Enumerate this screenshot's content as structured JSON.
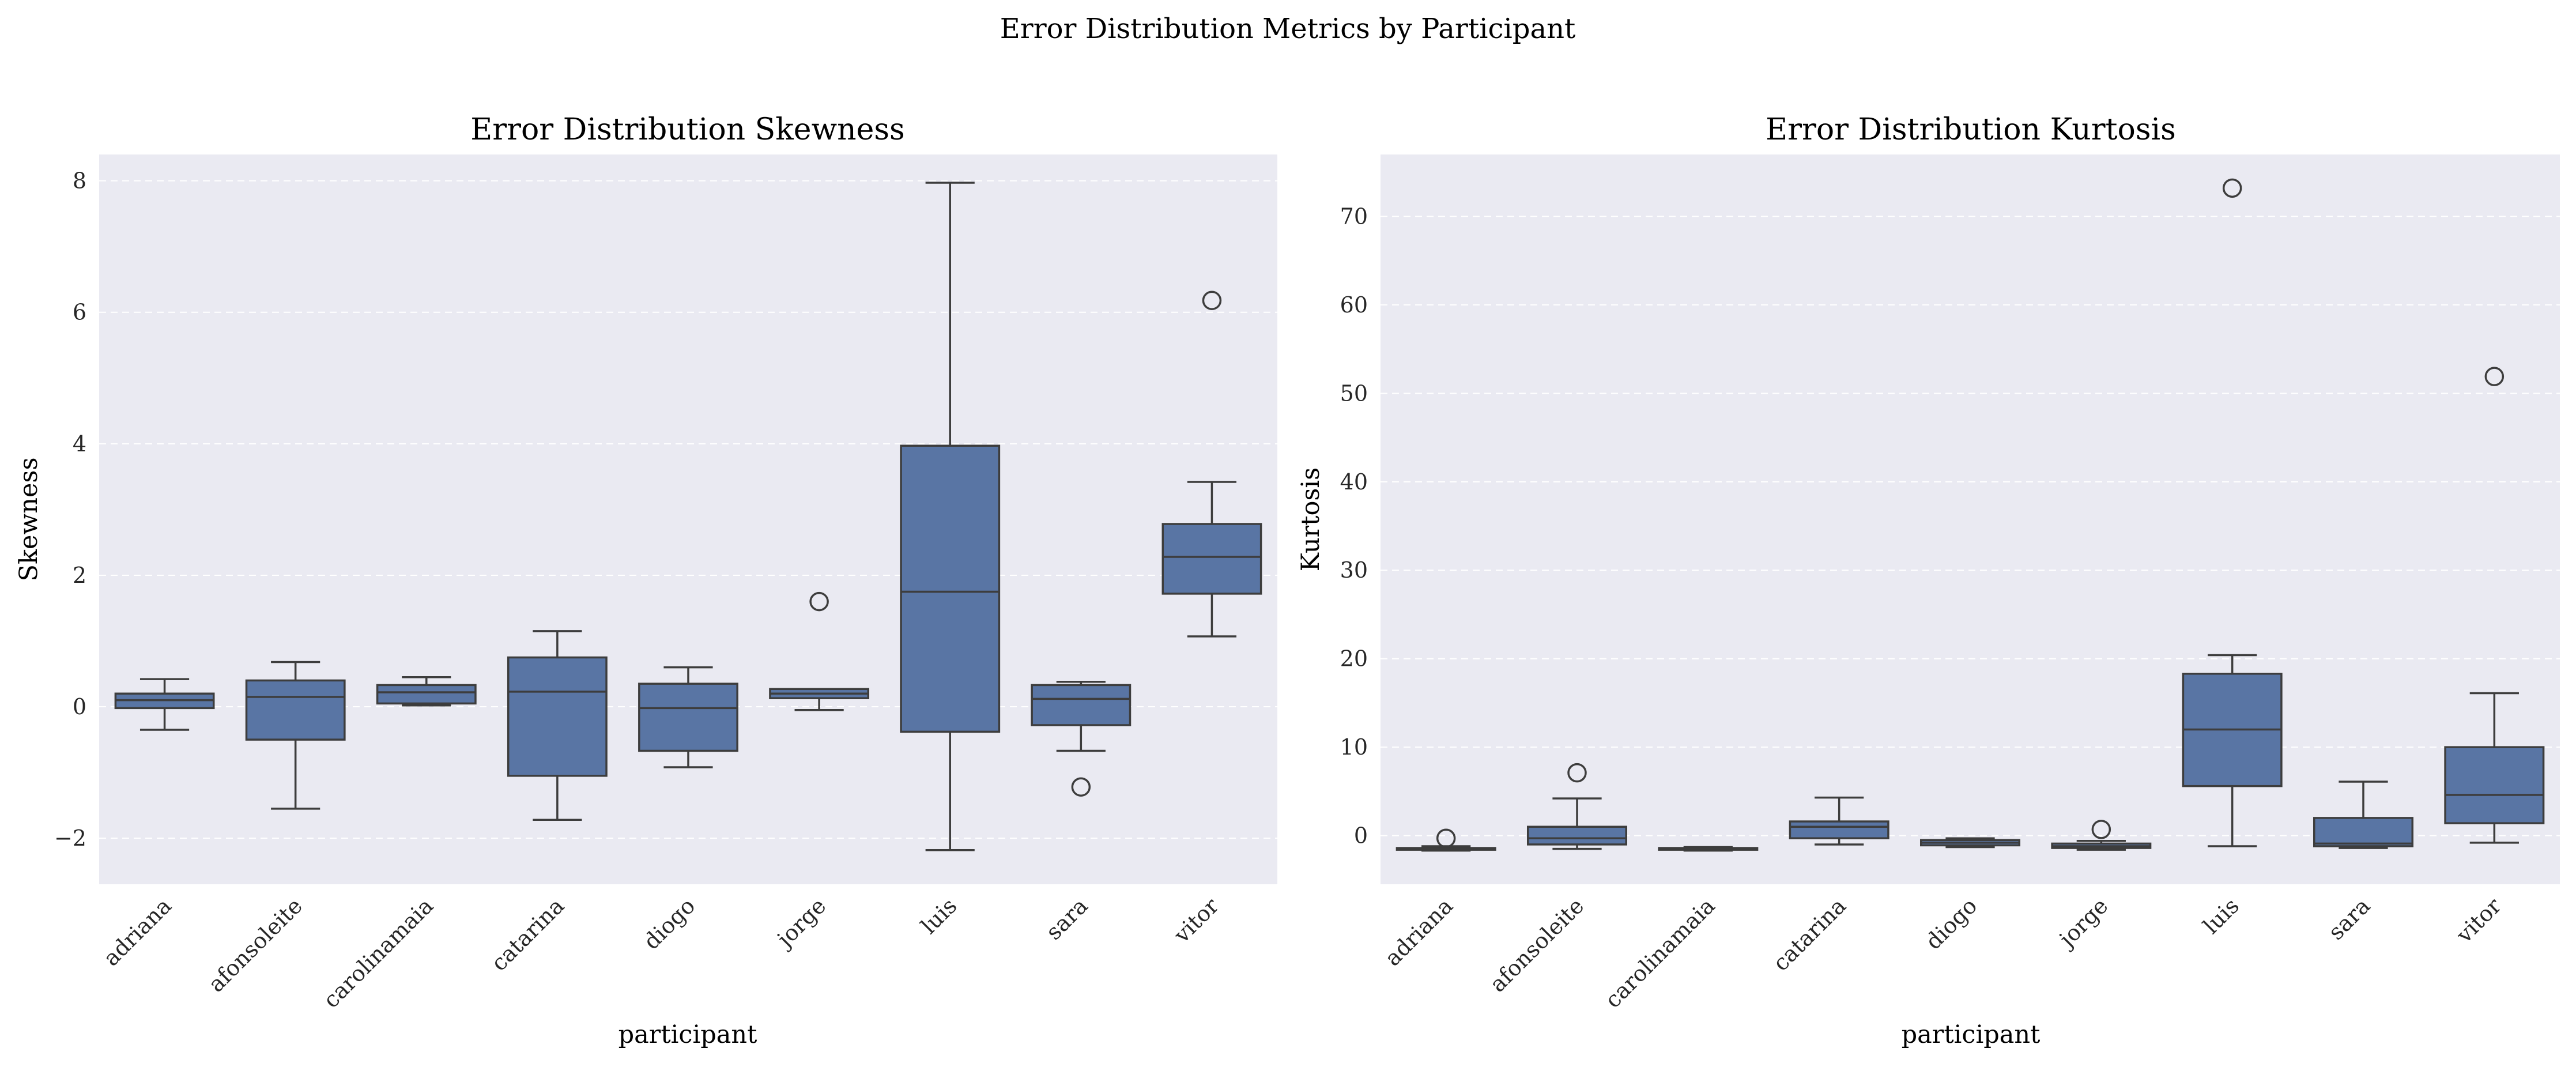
{
  "figure": {
    "suptitle": "Error Distribution Metrics by Participant"
  },
  "colors": {
    "background": "#eaeaf2",
    "box": "#5975a4",
    "line": "#3d3d3d",
    "grid": "#ffffff"
  },
  "chart_data": [
    {
      "type": "box",
      "title": "Error Distribution Skewness",
      "xlabel": "participant",
      "ylabel": "Skewness",
      "ylim": [
        -2.7,
        8.4
      ],
      "yticks": [
        -2,
        0,
        2,
        4,
        6,
        8
      ],
      "grid": true,
      "categories": [
        "adriana",
        "afonsoleite",
        "carolinamaia",
        "catarina",
        "diogo",
        "jorge",
        "luis",
        "sara",
        "vitor"
      ],
      "boxes": [
        {
          "whisker_low": -0.35,
          "q1": -0.02,
          "median": 0.1,
          "q3": 0.2,
          "whisker_high": 0.42,
          "outliers": []
        },
        {
          "whisker_low": -1.55,
          "q1": -0.5,
          "median": 0.15,
          "q3": 0.4,
          "whisker_high": 0.68,
          "outliers": []
        },
        {
          "whisker_low": 0.02,
          "q1": 0.05,
          "median": 0.22,
          "q3": 0.33,
          "whisker_high": 0.45,
          "outliers": []
        },
        {
          "whisker_low": -1.72,
          "q1": -1.05,
          "median": 0.23,
          "q3": 0.75,
          "whisker_high": 1.15,
          "outliers": []
        },
        {
          "whisker_low": -0.92,
          "q1": -0.67,
          "median": -0.02,
          "q3": 0.35,
          "whisker_high": 0.6,
          "outliers": []
        },
        {
          "whisker_low": -0.05,
          "q1": 0.13,
          "median": 0.2,
          "q3": 0.27,
          "whisker_high": 0.27,
          "outliers": [
            1.6
          ]
        },
        {
          "whisker_low": -2.18,
          "q1": -0.38,
          "median": 1.75,
          "q3": 3.97,
          "whisker_high": 7.97,
          "outliers": []
        },
        {
          "whisker_low": -0.67,
          "q1": -0.28,
          "median": 0.12,
          "q3": 0.33,
          "whisker_high": 0.38,
          "outliers": [
            -1.22
          ]
        },
        {
          "whisker_low": 1.07,
          "q1": 1.72,
          "median": 2.28,
          "q3": 2.78,
          "whisker_high": 3.42,
          "outliers": [
            6.18
          ]
        }
      ]
    },
    {
      "type": "box",
      "title": "Error Distribution Kurtosis",
      "xlabel": "participant",
      "ylabel": "Kurtosis",
      "ylim": [
        -5.5,
        77
      ],
      "yticks": [
        0,
        10,
        20,
        30,
        40,
        50,
        60,
        70
      ],
      "grid": true,
      "categories": [
        "adriana",
        "afonsoleite",
        "carolinamaia",
        "catarina",
        "diogo",
        "jorge",
        "luis",
        "sara",
        "vitor"
      ],
      "boxes": [
        {
          "whisker_low": -1.7,
          "q1": -1.6,
          "median": -1.5,
          "q3": -1.4,
          "whisker_high": -1.2,
          "outliers": [
            -0.3
          ]
        },
        {
          "whisker_low": -1.5,
          "q1": -1.0,
          "median": -0.3,
          "q3": 1.0,
          "whisker_high": 4.2,
          "outliers": [
            7.1
          ]
        },
        {
          "whisker_low": -1.7,
          "q1": -1.6,
          "median": -1.5,
          "q3": -1.4,
          "whisker_high": -1.3,
          "outliers": []
        },
        {
          "whisker_low": -1.0,
          "q1": -0.3,
          "median": 1.0,
          "q3": 1.6,
          "whisker_high": 4.3,
          "outliers": []
        },
        {
          "whisker_low": -1.3,
          "q1": -1.1,
          "median": -0.8,
          "q3": -0.5,
          "whisker_high": -0.3,
          "outliers": []
        },
        {
          "whisker_low": -1.6,
          "q1": -1.4,
          "median": -1.2,
          "q3": -0.9,
          "whisker_high": -0.6,
          "outliers": [
            0.7
          ]
        },
        {
          "whisker_low": -1.2,
          "q1": 5.6,
          "median": 12.0,
          "q3": 18.3,
          "whisker_high": 20.4,
          "outliers": [
            73.2
          ]
        },
        {
          "whisker_low": -1.4,
          "q1": -1.2,
          "median": -0.9,
          "q3": 2.0,
          "whisker_high": 6.1,
          "outliers": []
        },
        {
          "whisker_low": -0.8,
          "q1": 1.4,
          "median": 4.6,
          "q3": 10.0,
          "whisker_high": 16.1,
          "outliers": [
            51.9
          ]
        }
      ]
    }
  ]
}
